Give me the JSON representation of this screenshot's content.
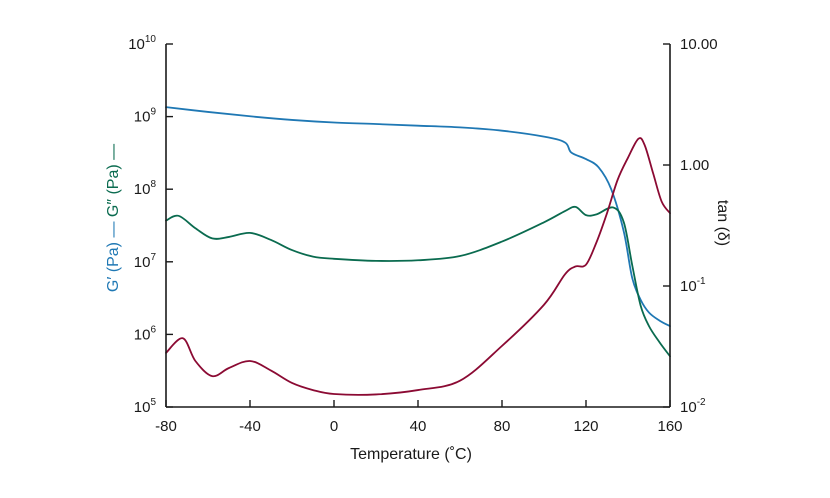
{
  "chart_data": {
    "type": "line",
    "xlabel": "Temperature (˚C)",
    "xlim": [
      -80,
      160
    ],
    "x_ticks": [
      -80,
      -40,
      0,
      40,
      80,
      120,
      160
    ],
    "y_left": {
      "label_parts": [
        {
          "text": "G′ (Pa) —",
          "color": "#1f78b4"
        },
        {
          "text": "G″ (Pa) —",
          "color": "#0a6b4f"
        }
      ],
      "scale": "log",
      "ylim": [
        100000,
        10000000000
      ],
      "ticks": [
        {
          "value": 100000,
          "base": "10",
          "exp": "5"
        },
        {
          "value": 1000000,
          "base": "10",
          "exp": "6"
        },
        {
          "value": 10000000,
          "base": "10",
          "exp": "7"
        },
        {
          "value": 100000000,
          "base": "10",
          "exp": "8"
        },
        {
          "value": 1000000000,
          "base": "10",
          "exp": "9"
        },
        {
          "value": 10000000000,
          "base": "10",
          "exp": "10"
        }
      ]
    },
    "y_right": {
      "label": "tan (δ)",
      "color": "#8b0a33",
      "scale": "log",
      "ylim": [
        0.01,
        10
      ],
      "ticks": [
        {
          "value": 0.01,
          "base": "10",
          "exp": "-2"
        },
        {
          "value": 0.1,
          "base": "10",
          "exp": "-1"
        },
        {
          "value": 1,
          "text": "1.00"
        },
        {
          "value": 10,
          "text": "10.00"
        }
      ]
    },
    "series": [
      {
        "key": "storage-modulus",
        "color": "#1f78b4",
        "axis": "left",
        "x": [
          -80,
          -60,
          -40,
          -20,
          0,
          20,
          40,
          60,
          80,
          100,
          110,
          113,
          120,
          126,
          132,
          138,
          142,
          146,
          150,
          155,
          160
        ],
        "y": [
          1350000000,
          1160000000,
          1010000000,
          900000000,
          830000000,
          790000000,
          750000000,
          710000000,
          640000000,
          530000000,
          440000000,
          320000000,
          260000000,
          200000000,
          100000000,
          26000000,
          6000000,
          3000000,
          2000000,
          1550000,
          1300000
        ]
      },
      {
        "key": "loss-modulus",
        "color": "#0a6b4f",
        "axis": "left",
        "x": [
          -80,
          -74,
          -66,
          -58,
          -50,
          -40,
          -30,
          -20,
          -10,
          0,
          20,
          40,
          60,
          80,
          100,
          110,
          115,
          120,
          125,
          133,
          138,
          142,
          146,
          150,
          155,
          160
        ],
        "y": [
          37000000,
          43000000,
          29000000,
          21000000,
          22000000,
          25000000,
          20000000,
          14500000,
          11800000,
          11000000,
          10300000,
          10500000,
          12000000,
          19000000,
          35000000,
          50000000,
          57000000,
          44000000,
          45000000,
          56000000,
          35000000,
          9000000,
          2500000,
          1300000,
          780000,
          500000
        ]
      },
      {
        "key": "tan-delta",
        "color": "#8b0a33",
        "axis": "right",
        "x": [
          -80,
          -72,
          -66,
          -58,
          -50,
          -40,
          -30,
          -20,
          -10,
          0,
          20,
          40,
          60,
          80,
          100,
          110,
          115,
          120,
          125,
          130,
          135,
          140,
          145,
          148,
          152,
          156,
          160
        ],
        "y": [
          0.028,
          0.037,
          0.024,
          0.018,
          0.021,
          0.024,
          0.02,
          0.0158,
          0.0138,
          0.0128,
          0.0127,
          0.0138,
          0.0165,
          0.032,
          0.07,
          0.125,
          0.145,
          0.15,
          0.23,
          0.4,
          0.75,
          1.15,
          1.65,
          1.45,
          0.85,
          0.5,
          0.4
        ]
      }
    ]
  }
}
